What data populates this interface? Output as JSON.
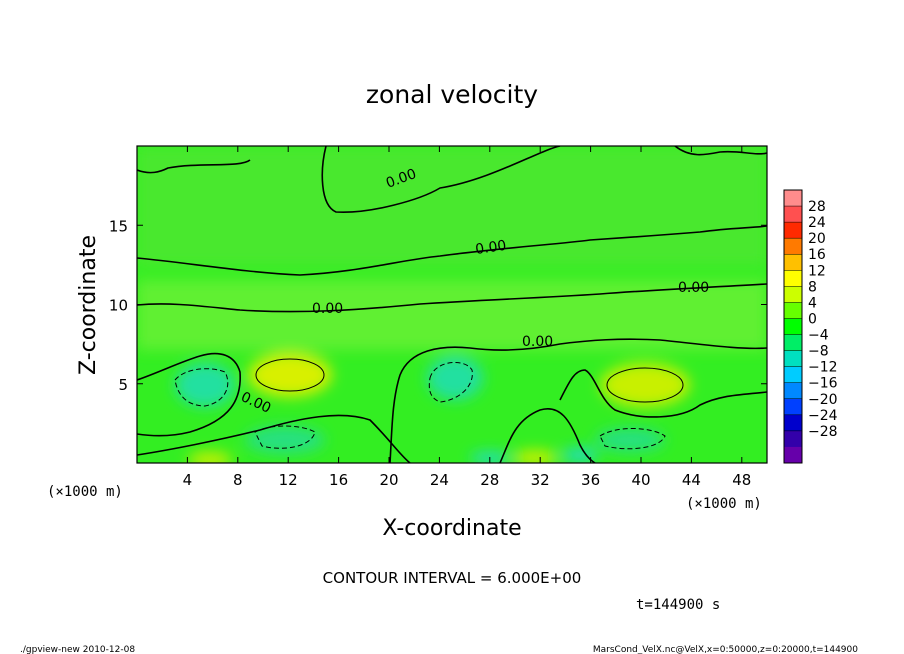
{
  "chart_data": {
    "type": "heatmap",
    "title": "zonal velocity",
    "xlabel": "X-coordinate",
    "ylabel": "Z-coordinate",
    "x_unit_left": "(×1000 m)",
    "x_unit_right": "(×1000 m)",
    "xlim": [
      0,
      50
    ],
    "ylim": [
      0,
      20
    ],
    "x_ticks": [
      4,
      8,
      12,
      16,
      20,
      24,
      28,
      32,
      36,
      40,
      44,
      48
    ],
    "y_ticks": [
      5,
      10,
      15
    ],
    "contour_interval_text": "CONTOUR INTERVAL = 6.000E+00",
    "time_text": "t=144900 s",
    "contour_labels": [
      "0.00",
      "0.00",
      "0.00",
      "0.00",
      "0.00",
      "0.00"
    ],
    "colorbar": {
      "labels": [
        "28",
        "24",
        "20",
        "16",
        "12",
        "8",
        "4",
        "0",
        "−4",
        "−8",
        "−12",
        "−16",
        "−20",
        "−24",
        "−28"
      ],
      "colors": [
        "#ff8c8c",
        "#ff5050",
        "#ff2a00",
        "#ff7a00",
        "#ffc000",
        "#ffff00",
        "#ccff00",
        "#66ff00",
        "#00ff00",
        "#00ee66",
        "#00e0c0",
        "#00ccff",
        "#0088ff",
        "#0040ff",
        "#0000cc",
        "#3300aa",
        "#6600aa"
      ]
    }
  },
  "footer": {
    "left": "./gpview-new   2010-12-08",
    "right": "MarsCond_VelX.nc@VelX,x=0:50000,z=0:20000,t=144900"
  }
}
